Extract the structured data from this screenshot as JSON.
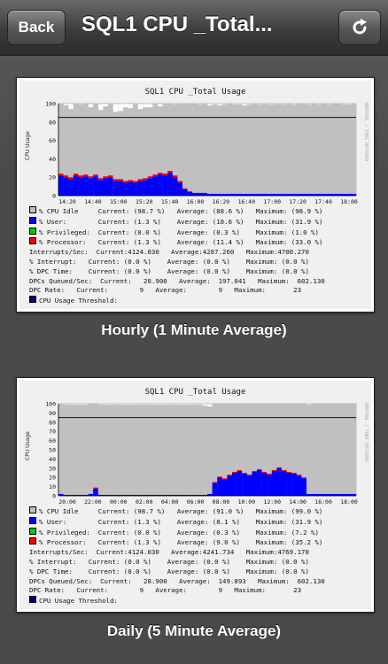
{
  "nav": {
    "back_label": "Back",
    "title": "SQL1 CPU _Total...",
    "refresh_icon": "refresh-icon"
  },
  "charts": [
    {
      "caption": "Hourly (1 Minute Average)",
      "y_axis_label": "CPU Usage",
      "watermark": "RRDTOOL / TOBI OETIKER",
      "legend": [
        {
          "color": "#c0c0c0",
          "text": "% CPU Idle     Current: (98.7 %)   Average: (88.6 %)   Maximum: (98.9 %)"
        },
        {
          "color": "#0000ff",
          "text": "% User:        Current: (1.3 %)    Average: (10.6 %)   Maximum: (31.9 %)"
        },
        {
          "color": "#00cc00",
          "text": "% Privileged:  Current: (0.0 %)    Average: (0.3 %)    Maximum: (1.0 %)"
        },
        {
          "color": "#ff0000",
          "text": "% Processor:   Current: (1.3 %)    Average: (11.4 %)   Maximum: (33.0 %)"
        },
        {
          "color": null,
          "text": "Interrupts/Sec:  Current:4124.030   Average:4287.260   Maximum:4700.270"
        },
        {
          "color": null,
          "text": "% Interrupt:   Current: (0.0 %)    Average: (0.0 %)    Maximum: (0.0 %)"
        },
        {
          "color": null,
          "text": "% DPC Time:    Current: (0.0 %)    Average: (0.0 %)    Maximum: (0.0 %)"
        },
        {
          "color": null,
          "text": "DPCs Queued/Sec:  Current:   28.900   Average:  197.041   Maximum:  602.130"
        },
        {
          "color": null,
          "text": "DPC Rate:   Current:        9   Average:        9   Maximum:       23"
        },
        {
          "color": "#000080",
          "text": "CPU Usage Threshold:"
        }
      ]
    },
    {
      "caption": "Daily (5 Minute Average)",
      "y_axis_label": "CPU Usage",
      "watermark": "RRDTOOL / TOBI OETIKER",
      "legend": [
        {
          "color": "#c0c0c0",
          "text": "% CPU Idle     Current: (98.7 %)   Average: (91.0 %)   Maximum: (99.0 %)"
        },
        {
          "color": "#0000ff",
          "text": "% User:        Current: (1.3 %)    Average: (8.1 %)    Maximum: (31.9 %)"
        },
        {
          "color": "#00cc00",
          "text": "% Privileged:  Current: (0.0 %)    Average: (0.3 %)    Maximum: (7.2 %)"
        },
        {
          "color": "#ff0000",
          "text": "% Processor:   Current: (1.3 %)    Average: (9.0 %)    Maximum: (35.2 %)"
        },
        {
          "color": null,
          "text": "Interrupts/Sec:  Current:4124.030   Average:4241.734   Maximum:4769.170"
        },
        {
          "color": null,
          "text": "% Interrupt:   Current: (0.0 %)    Average: (0.0 %)    Maximum: (0.0 %)"
        },
        {
          "color": null,
          "text": "% DPC Time:    Current: (0.0 %)    Average: (0.0 %)    Maximum: (0.0 %)"
        },
        {
          "color": null,
          "text": "DPCs Queued/Sec:  Current:   28.900   Average:  149.893   Maximum:  602.130"
        },
        {
          "color": null,
          "text": "DPC Rate:   Current:        9   Average:        9   Maximum:       23"
        },
        {
          "color": "#000080",
          "text": "CPU Usage Threshold:"
        }
      ]
    }
  ],
  "chart_data": [
    {
      "type": "area",
      "title": "SQL1 CPU _Total Usage",
      "ylabel": "CPU Usage",
      "ylim": [
        0,
        100
      ],
      "yticks": [
        0,
        20,
        40,
        60,
        80,
        100
      ],
      "xticks": [
        "14:20",
        "14:40",
        "15:00",
        "15:20",
        "15:40",
        "16:00",
        "16:20",
        "16:40",
        "17:00",
        "17:20",
        "17:40",
        "18:00"
      ],
      "threshold": 85,
      "series": [
        {
          "name": "% User:",
          "color": "#0000ff",
          "values": [
            22,
            20,
            18,
            22,
            20,
            21,
            19,
            21,
            17,
            19,
            20,
            16,
            16,
            14,
            15,
            14,
            16,
            17,
            19,
            21,
            23,
            22,
            25,
            20,
            14,
            7,
            4,
            3,
            3,
            3,
            2,
            2,
            2,
            2,
            2,
            2,
            2,
            2,
            2,
            2,
            2,
            2,
            2,
            2,
            2,
            2,
            2,
            2,
            2,
            2,
            2,
            2,
            2,
            2,
            2,
            2,
            2,
            2,
            2,
            2
          ]
        },
        {
          "name": "% Processor:",
          "color": "#ff0000",
          "values": [
            24,
            22,
            20,
            24,
            22,
            23,
            21,
            23,
            19,
            21,
            22,
            18,
            18,
            16,
            17,
            16,
            18,
            19,
            21,
            23,
            25,
            24,
            27,
            22,
            16,
            8,
            5,
            3,
            3,
            3,
            2,
            2,
            2,
            2,
            2,
            2,
            2,
            2,
            2,
            2,
            2,
            2,
            2,
            2,
            2,
            2,
            2,
            2,
            2,
            2,
            2,
            2,
            2,
            2,
            2,
            2,
            2,
            2,
            2,
            2
          ]
        },
        {
          "name": "% CPU Idle",
          "color": "#c0c0c0",
          "values": [
            78,
            76,
            74,
            82,
            77,
            80,
            75,
            79,
            74,
            76,
            81,
            73,
            74,
            80,
            78,
            84,
            76,
            77,
            75,
            78,
            72,
            78,
            76,
            77,
            84,
            92,
            95,
            97,
            96,
            97,
            96,
            97,
            96,
            97,
            98,
            97,
            97,
            96,
            97,
            98,
            97,
            98,
            97,
            97,
            98,
            97,
            98,
            97,
            98,
            98,
            97,
            98,
            97,
            98,
            97,
            98,
            98,
            97,
            97,
            98
          ]
        }
      ]
    },
    {
      "type": "area",
      "title": "SQL1 CPU _Total Usage",
      "ylabel": "CPU Usage",
      "ylim": [
        0,
        100
      ],
      "yticks": [
        0,
        10,
        20,
        30,
        40,
        50,
        60,
        70,
        80,
        90,
        100
      ],
      "xticks": [
        "20:00",
        "22:00",
        "00:00",
        "02:00",
        "04:00",
        "06:00",
        "08:00",
        "10:00",
        "12:00",
        "14:00",
        "16:00",
        "18:00"
      ],
      "threshold": 85,
      "series": [
        {
          "name": "% User:",
          "color": "#0000ff",
          "values": [
            2,
            1,
            1,
            1,
            1,
            1,
            2,
            8,
            1,
            1,
            1,
            1,
            1,
            1,
            1,
            1,
            1,
            1,
            1,
            1,
            1,
            1,
            1,
            1,
            1,
            1,
            1,
            1,
            1,
            1,
            2,
            14,
            20,
            18,
            22,
            25,
            27,
            24,
            22,
            26,
            28,
            25,
            23,
            27,
            30,
            27,
            25,
            24,
            22,
            19,
            2,
            2,
            2,
            2,
            2,
            2,
            2,
            2,
            2,
            2
          ]
        },
        {
          "name": "% Processor:",
          "color": "#ff0000",
          "values": [
            2,
            1,
            1,
            1,
            1,
            1,
            2,
            9,
            1,
            1,
            1,
            1,
            1,
            1,
            1,
            1,
            1,
            1,
            1,
            1,
            1,
            1,
            1,
            1,
            1,
            1,
            1,
            1,
            1,
            1,
            2,
            15,
            21,
            19,
            23,
            26,
            28,
            25,
            23,
            27,
            29,
            26,
            24,
            28,
            31,
            28,
            26,
            25,
            23,
            20,
            2,
            2,
            2,
            2,
            2,
            2,
            2,
            2,
            2,
            2
          ]
        },
        {
          "name": "% CPU Idle",
          "color": "#c0c0c0",
          "values": [
            98,
            98,
            98,
            98,
            98,
            98,
            98,
            92,
            98,
            98,
            98,
            98,
            98,
            98,
            98,
            98,
            98,
            98,
            98,
            98,
            98,
            98,
            98,
            98,
            98,
            98,
            98,
            98,
            98,
            97,
            95,
            86,
            80,
            82,
            77,
            74,
            72,
            75,
            78,
            74,
            71,
            75,
            77,
            73,
            70,
            73,
            75,
            76,
            78,
            81,
            97,
            98,
            98,
            98,
            98,
            98,
            98,
            98,
            98,
            98
          ]
        }
      ]
    }
  ]
}
